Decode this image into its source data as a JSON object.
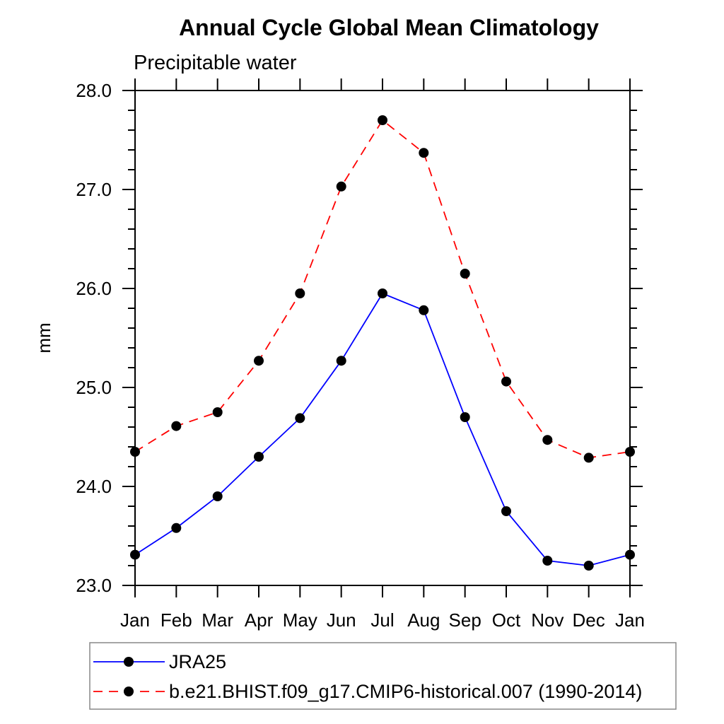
{
  "chart_data": {
    "type": "line",
    "title": "Annual Cycle Global Mean Climatology",
    "subtitle": "Precipitable water",
    "ylabel": "mm",
    "xlabel": "",
    "categories": [
      "Jan",
      "Feb",
      "Mar",
      "Apr",
      "May",
      "Jun",
      "Jul",
      "Aug",
      "Sep",
      "Oct",
      "Nov",
      "Dec",
      "Jan"
    ],
    "ylim": [
      23.0,
      28.0
    ],
    "y_major_tick_labels": [
      "23.0",
      "24.0",
      "25.0",
      "26.0",
      "27.0",
      "28.0"
    ],
    "y_major_step": 1.0,
    "y_minor_step": 0.2,
    "grid": false,
    "frame": "box-with-outward-ticks",
    "legend_position": "bottom-left-box",
    "colors": {
      "axis": "#000000",
      "marker": "#000000",
      "legend_border": "#888888",
      "background": "#ffffff"
    },
    "series": [
      {
        "name": "JRA25",
        "color": "#0000ff",
        "line_style": "solid",
        "marker": "filled-circle",
        "values": [
          23.31,
          23.58,
          23.9,
          24.3,
          24.69,
          25.27,
          25.95,
          25.78,
          24.7,
          23.75,
          23.25,
          23.2,
          23.31
        ]
      },
      {
        "name": "b.e21.BHIST.f09_g17.CMIP6-historical.007 (1990-2014)",
        "color": "#ff0000",
        "line_style": "dashed",
        "marker": "filled-circle",
        "values": [
          24.35,
          24.61,
          24.75,
          25.27,
          25.95,
          27.03,
          27.7,
          27.37,
          26.15,
          25.06,
          24.47,
          24.29,
          24.35
        ]
      }
    ]
  }
}
